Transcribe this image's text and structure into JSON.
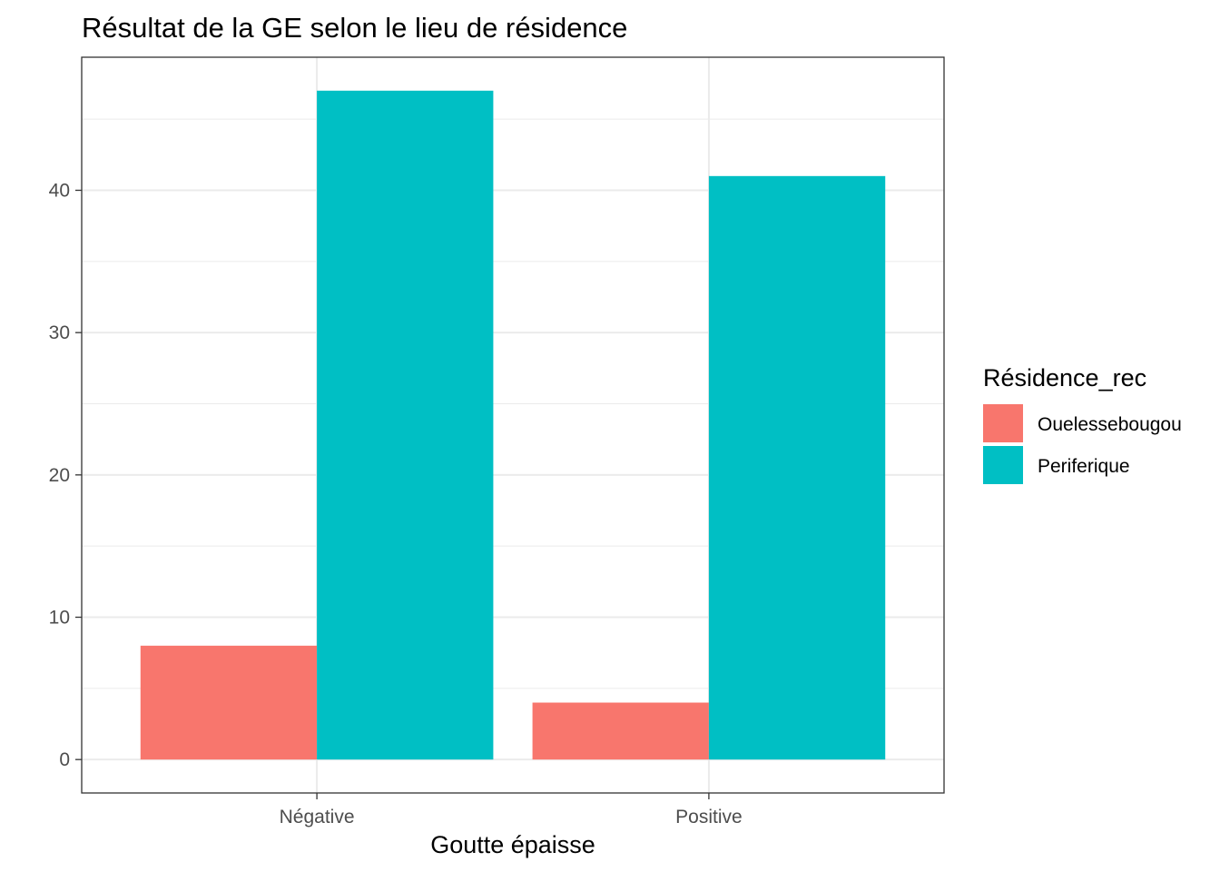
{
  "chart_data": {
    "type": "bar",
    "title": "Résultat de la GE selon le lieu de résidence",
    "xlabel": "Goutte épaisse",
    "ylabel": "",
    "categories": [
      "Négative",
      "Positive"
    ],
    "series": [
      {
        "name": "Ouelessebougou",
        "color": "#F8766D",
        "values": [
          8,
          4
        ]
      },
      {
        "name": "Periferique",
        "color": "#00BFC4",
        "values": [
          47,
          41
        ]
      }
    ],
    "ylim": [
      -2.35,
      49.35
    ],
    "yticks": [
      0,
      10,
      20,
      30,
      40
    ],
    "grid": true,
    "legend": {
      "title": "Résidence_rec",
      "position": "right"
    }
  }
}
